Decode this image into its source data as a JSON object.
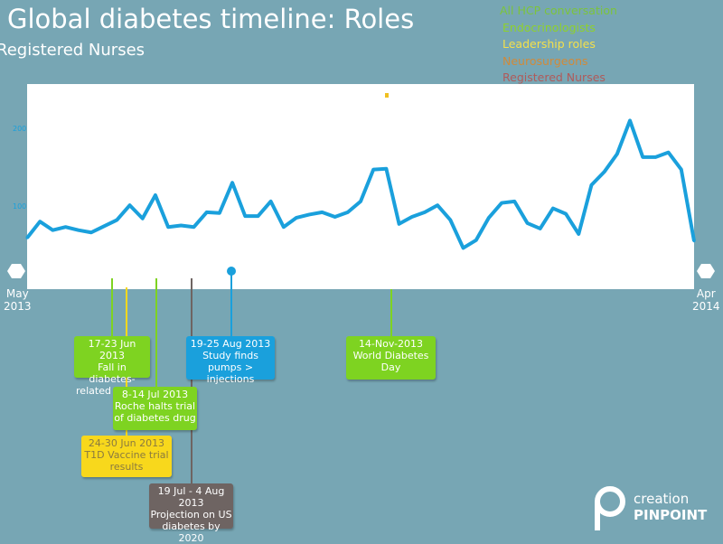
{
  "title": "Global diabetes timeline: Roles",
  "subtitle": "Registered Nurses",
  "legend": [
    {
      "label": "All HCP conversation",
      "color": "#7cc43c"
    },
    {
      "label": "Endocrinologists",
      "color": "#8fd22a"
    },
    {
      "label": "Leadership roles",
      "color": "#f4e04a"
    },
    {
      "label": "Neurosurgeons",
      "color": "#d08a3a"
    },
    {
      "label": "Registered Nurses",
      "color": "#b05a5a"
    }
  ],
  "chart_data": {
    "type": "line",
    "title": "Global diabetes timeline: Roles",
    "subtitle": "Registered Nurses",
    "x_ticks": [
      {
        "month": "May",
        "year": "2013"
      },
      {
        "month": "Apr",
        "year": "2014"
      }
    ],
    "y_ticks": [
      100,
      200
    ],
    "ylim": [
      0,
      250
    ],
    "series": [
      {
        "color": "#1aa0dc",
        "values": [
          59,
          80,
          69,
          73,
          69,
          66,
          74,
          82,
          101,
          84,
          114,
          73,
          75,
          73,
          92,
          91,
          130,
          87,
          87,
          106,
          73,
          85,
          89,
          92,
          86,
          92,
          106,
          147,
          148,
          77,
          86,
          92,
          101,
          82,
          46,
          56,
          85,
          104,
          106,
          78,
          71,
          97,
          90,
          64,
          127,
          144,
          167,
          210,
          163,
          163,
          169,
          147,
          55
        ]
      }
    ],
    "events": [
      {
        "date": "17-23 Jun 2013",
        "text": "Fall in diabetes-related deaths",
        "color": "#7ed321"
      },
      {
        "date": "24-30 Jun 2013",
        "text": "T1D Vaccine trial results",
        "color": "#f8d81c"
      },
      {
        "date": "8-14 Jul 2013",
        "text": "Roche halts trial of diabetes drug",
        "color": "#7ed321"
      },
      {
        "date": "19 Jul - 4 Aug 2013",
        "text": "Projection on US diabetes by 2020",
        "color": "#6e6462"
      },
      {
        "date": "19-25 Aug 2013",
        "text": "Study finds pumps > injections",
        "color": "#1aa0dc"
      },
      {
        "date": "14-Nov-2013",
        "text": "World Diabetes Day",
        "color": "#7ed321"
      }
    ]
  },
  "logo": {
    "line1": "creation",
    "line2": "PINPOINT"
  }
}
